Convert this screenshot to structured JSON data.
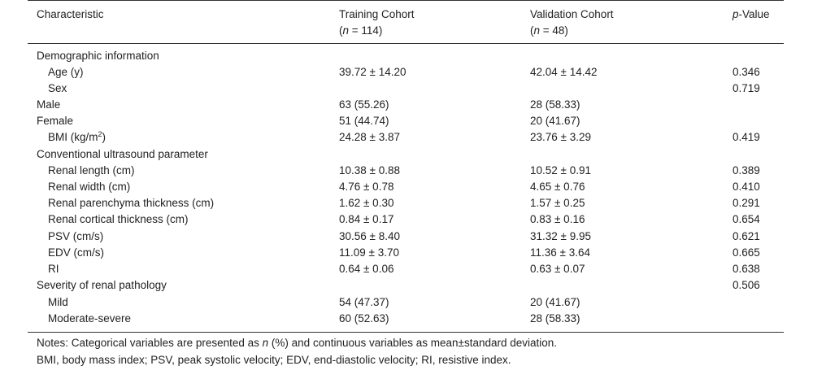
{
  "header": {
    "characteristic": "Characteristic",
    "training": "Training Cohort",
    "training_n_italic": "n",
    "training_n_rest": " = 114)",
    "validation": "Validation Cohort",
    "validation_n_italic": "n",
    "validation_n_rest": " = 48)",
    "pvalue_italic": "p",
    "pvalue_rest": "-Value"
  },
  "rows": [
    {
      "label": "Demographic information",
      "train": "",
      "valid": "",
      "p": ""
    },
    {
      "label": "Age (y)",
      "train": "39.72 ± 14.20",
      "valid": "42.04 ± 14.42",
      "p": "0.346"
    },
    {
      "label": "Sex",
      "train": "",
      "valid": "",
      "p": "0.719"
    },
    {
      "label": "Male",
      "train": "63 (55.26)",
      "valid": "28 (58.33)",
      "p": ""
    },
    {
      "label": "Female",
      "train": "51 (44.74)",
      "valid": "20 (41.67)",
      "p": ""
    },
    {
      "label": "BMI (kg/m",
      "label_sup": "2",
      "label_tail": ")",
      "train": "24.28 ± 3.87",
      "valid": "23.76 ± 3.29",
      "p": "0.419"
    },
    {
      "label": "Conventional ultrasound parameter",
      "train": "",
      "valid": "",
      "p": ""
    },
    {
      "label": "Renal length (cm)",
      "train": "10.38 ± 0.88",
      "valid": "10.52 ± 0.91",
      "p": "0.389"
    },
    {
      "label": "Renal width (cm)",
      "train": "4.76 ± 0.78",
      "valid": "4.65 ± 0.76",
      "p": "0.410"
    },
    {
      "label": "Renal parenchyma thickness (cm)",
      "train": "1.62 ± 0.30",
      "valid": "1.57 ± 0.25",
      "p": "0.291"
    },
    {
      "label": "Renal cortical thickness (cm)",
      "train": "0.84 ± 0.17",
      "valid": "0.83 ± 0.16",
      "p": "0.654"
    },
    {
      "label": "PSV (cm/s)",
      "train": "30.56 ± 8.40",
      "valid": "31.32 ± 9.95",
      "p": "0.621"
    },
    {
      "label": "EDV (cm/s)",
      "train": "11.09 ± 3.70",
      "valid": "11.36 ± 3.64",
      "p": "0.665"
    },
    {
      "label": "RI",
      "train": "0.64 ± 0.06",
      "valid": "0.63 ± 0.07",
      "p": "0.638"
    },
    {
      "label": "Severity of renal pathology",
      "train": "",
      "valid": "",
      "p": "0.506"
    },
    {
      "label": "Mild",
      "train": "54 (47.37)",
      "valid": "20 (41.67)",
      "p": ""
    },
    {
      "label": "Moderate-severe",
      "train": "60 (52.63)",
      "valid": "28 (58.33)",
      "p": ""
    }
  ],
  "notes": {
    "line1_a": "Notes: Categorical variables are presented as ",
    "line1_n": "n",
    "line1_b": " (%) and continuous variables as mean±standard deviation.",
    "line2": "BMI, body mass index; PSV, peak systolic velocity; EDV, end-diastolic velocity; RI, resistive index."
  }
}
